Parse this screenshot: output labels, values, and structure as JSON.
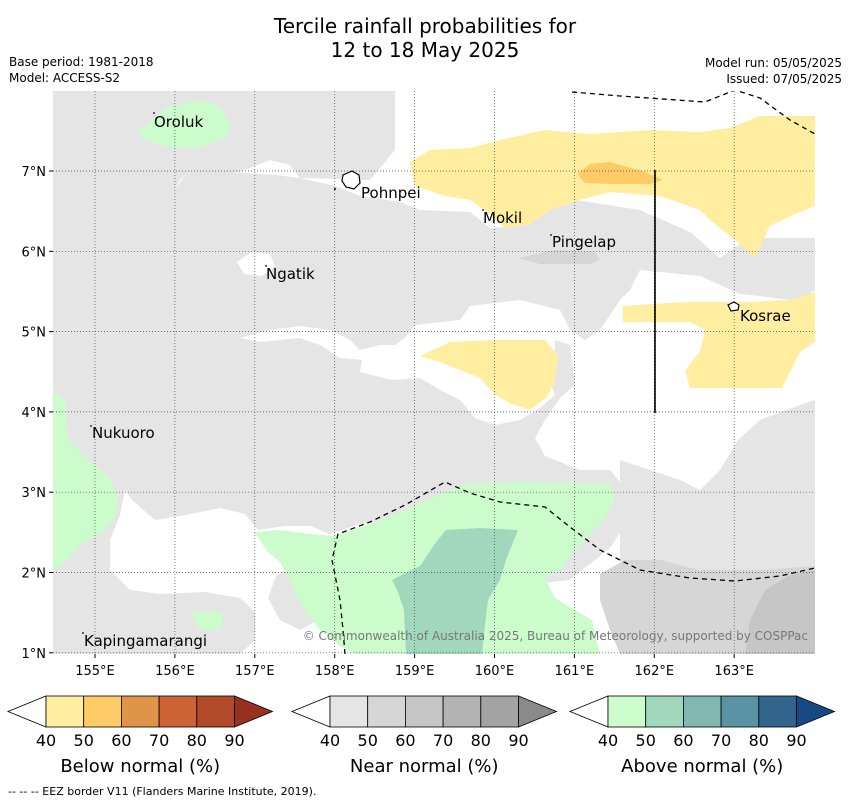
{
  "title_line1": "Tercile rainfall probabilities for",
  "title_line2": "12 to 18 May 2025",
  "base_period": "Base period: 1981-2018",
  "model": "Model: ACCESS-S2",
  "model_run": "Model run: 05/05/2025",
  "issued": "Issued: 07/05/2025",
  "copyright": "© Commonwealth of Australia 2025, Bureau of Meteorology, supported by COSPPac",
  "footer": "--  --  -- EEZ border V11 (Flanders Marine Institute, 2019).",
  "map": {
    "lon_ticks": [
      "155°E",
      "156°E",
      "157°E",
      "158°E",
      "159°E",
      "160°E",
      "161°E",
      "162°E",
      "163°E"
    ],
    "lat_ticks": [
      "7°N",
      "6°N",
      "5°N",
      "4°N",
      "3°N",
      "2°N",
      "1°N"
    ],
    "places": [
      "Oroluk",
      "Pohnpei",
      "Mokil",
      "Pingelap",
      "Ngatik",
      "Kosrae",
      "Nukuoro",
      "Kapingamarangi"
    ]
  },
  "legend": {
    "below": {
      "title": "Below normal (%)",
      "ticks": [
        "40",
        "50",
        "60",
        "70",
        "80",
        "90"
      ],
      "colors": [
        "#ffeda0",
        "#fecb67",
        "#e0944a",
        "#cd6335",
        "#b24a2a",
        "#973220"
      ]
    },
    "near": {
      "title": "Near normal (%)",
      "ticks": [
        "40",
        "50",
        "60",
        "70",
        "80",
        "90"
      ],
      "colors": [
        "#e5e5e5",
        "#d6d6d6",
        "#c6c6c6",
        "#b3b3b3",
        "#a3a3a3",
        "#8a8a8a"
      ]
    },
    "above": {
      "title": "Above normal (%)",
      "ticks": [
        "40",
        "50",
        "60",
        "70",
        "80",
        "90"
      ],
      "colors": [
        "#ccfccc",
        "#a1d8bd",
        "#81b7b0",
        "#5a93a3",
        "#33648e",
        "#174a84"
      ]
    }
  }
}
